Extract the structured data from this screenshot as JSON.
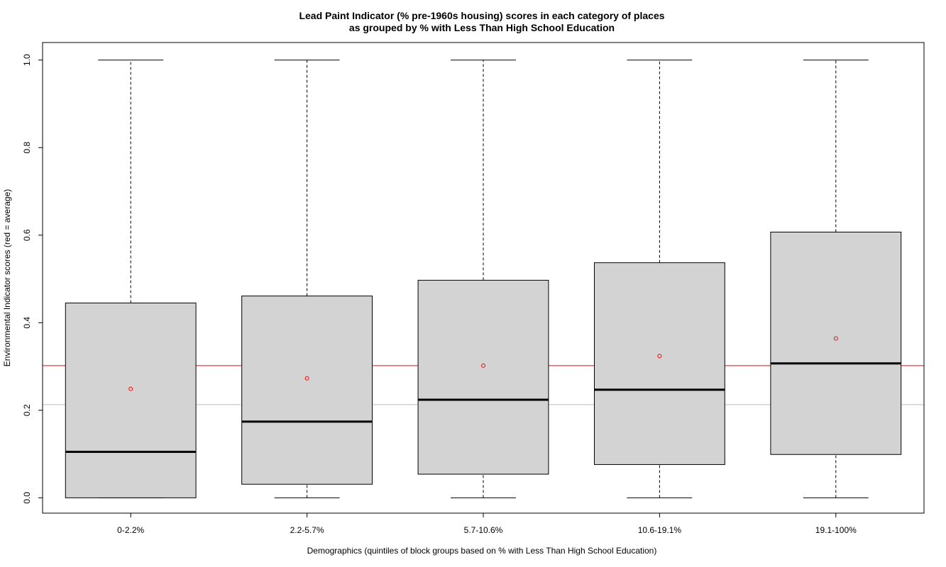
{
  "chart_data": {
    "type": "boxplot",
    "title_line1": "Lead Paint Indicator (% pre-1960s housing) scores in each category of places",
    "title_line2": "as grouped by % with Less Than High School Education",
    "xlabel": "Demographics (quintiles of block groups based on % with Less Than High School Education)",
    "ylabel": "Environmental Indicator scores (red = average)",
    "ylim": [
      -0.035,
      1.04
    ],
    "yticks": [
      "0.0",
      "0.2",
      "0.4",
      "0.6",
      "0.8",
      "1.0"
    ],
    "categories": [
      "0-2.2%",
      "2.2-5.7%",
      "5.7-10.6%",
      "10.6-19.1%",
      "19.1-100%"
    ],
    "boxes": [
      {
        "min": 0.0,
        "q1": 0.0,
        "median": 0.105,
        "q3": 0.445,
        "max": 1.0,
        "mean": 0.249
      },
      {
        "min": 0.0,
        "q1": 0.031,
        "median": 0.174,
        "q3": 0.461,
        "max": 1.0,
        "mean": 0.273
      },
      {
        "min": 0.0,
        "q1": 0.054,
        "median": 0.224,
        "q3": 0.497,
        "max": 1.0,
        "mean": 0.302
      },
      {
        "min": 0.0,
        "q1": 0.076,
        "median": 0.247,
        "q3": 0.537,
        "max": 1.0,
        "mean": 0.324
      },
      {
        "min": 0.0,
        "q1": 0.099,
        "median": 0.307,
        "q3": 0.607,
        "max": 1.0,
        "mean": 0.364
      }
    ],
    "overall_average_line": 0.302,
    "overall_median_line": 0.213,
    "colors": {
      "box_fill": "#d3d3d3",
      "stroke": "#000000",
      "average_line": "#ff0000",
      "median_reference_line": "#bebebe",
      "mean_marker": "#ff0000"
    },
    "grid": false,
    "legend": "none"
  }
}
